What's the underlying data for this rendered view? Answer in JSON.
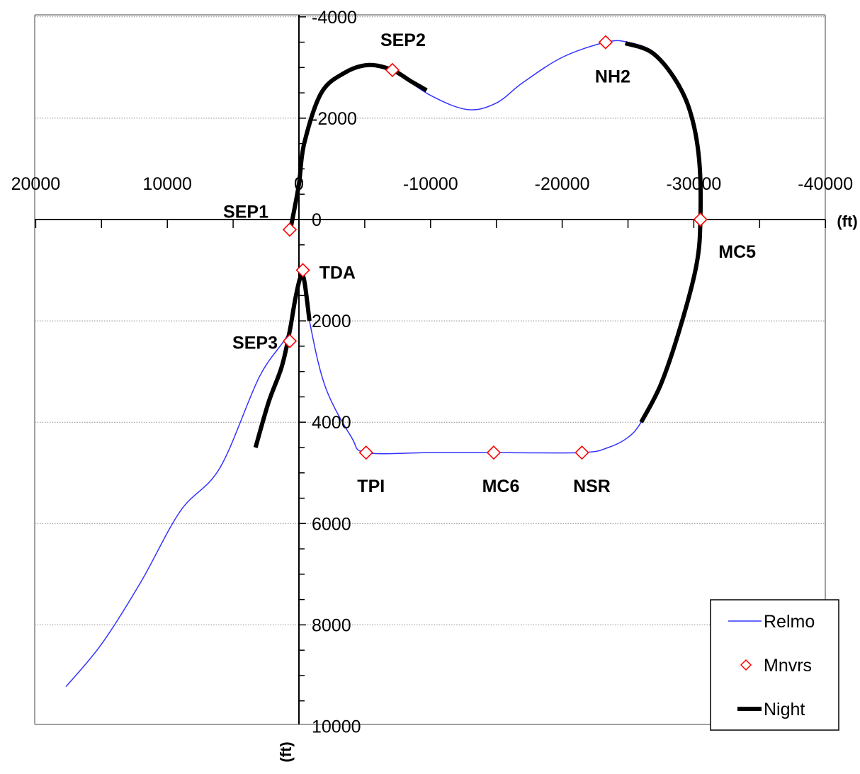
{
  "chart_data": {
    "type": "line",
    "x_unit_label": "(ft)",
    "y_unit_label": "(ft)",
    "xlim": [
      20000,
      -40000
    ],
    "ylim": [
      -4000,
      10000
    ],
    "x_axis_reversed": true,
    "y_axis_inverted": true,
    "x_ticks": [
      20000,
      10000,
      0,
      -10000,
      -20000,
      -30000,
      -40000
    ],
    "y_ticks": [
      -4000,
      -2000,
      0,
      2000,
      4000,
      6000,
      8000,
      10000
    ],
    "x_tick_labels": [
      "20000",
      "10000",
      "0",
      "-10000",
      "-20000",
      "-30000",
      "-40000"
    ],
    "y_tick_labels": [
      "-4000",
      "-2000",
      "0",
      "2000",
      "4000",
      "6000",
      "8000",
      "10000"
    ],
    "grid": "horizontal dotted at y ticks",
    "legend_position": "bottom-right",
    "legend": [
      "Relmo",
      "Mnvrs",
      "Night"
    ],
    "series": [
      {
        "name": "Relmo",
        "color": "#3333ff",
        "points": [
          [
            17700,
            9220
          ],
          [
            15000,
            8380
          ],
          [
            12000,
            7150
          ],
          [
            9000,
            5750
          ],
          [
            6000,
            4900
          ],
          [
            3000,
            3100
          ],
          [
            700,
            2180
          ],
          [
            0,
            1150
          ],
          [
            -400,
            1200
          ],
          [
            -800,
            2000
          ],
          [
            -2000,
            3300
          ],
          [
            -4000,
            4300
          ],
          [
            -5100,
            4600
          ],
          [
            -10000,
            4600
          ],
          [
            -14800,
            4600
          ],
          [
            -21500,
            4600
          ],
          [
            -23500,
            4500
          ],
          [
            -25000,
            4300
          ],
          [
            -26000,
            4000
          ],
          [
            -27500,
            3250
          ],
          [
            -29000,
            2100
          ],
          [
            -30200,
            900
          ],
          [
            -30500,
            0
          ],
          [
            -30400,
            -1200
          ],
          [
            -29700,
            -2150
          ],
          [
            -28500,
            -2800
          ],
          [
            -27000,
            -3300
          ],
          [
            -25000,
            -3500
          ],
          [
            -23300,
            -3500
          ],
          [
            -20000,
            -3200
          ],
          [
            -17000,
            -2700
          ],
          [
            -15000,
            -2300
          ],
          [
            -12800,
            -2170
          ],
          [
            -10000,
            -2450
          ],
          [
            -7000,
            -2950
          ],
          [
            -5300,
            -3050
          ],
          [
            -3500,
            -2900
          ],
          [
            -1700,
            -2500
          ],
          [
            -400,
            -1500
          ],
          [
            0,
            -700
          ],
          [
            500,
            0
          ],
          [
            660,
            200
          ]
        ]
      }
    ],
    "night_segments": [
      [
        [
          -9700,
          -2550
        ],
        [
          -8500,
          -2730
        ],
        [
          -7100,
          -2950
        ],
        [
          -5300,
          -3050
        ],
        [
          -3500,
          -2900
        ],
        [
          -1700,
          -2500
        ],
        [
          -400,
          -1500
        ],
        [
          0,
          -700
        ],
        [
          500,
          0
        ],
        [
          660,
          200
        ]
      ],
      [
        [
          -24800,
          -3480
        ],
        [
          -26800,
          -3300
        ],
        [
          -28500,
          -2800
        ],
        [
          -29700,
          -2150
        ],
        [
          -30400,
          -1200
        ],
        [
          -30500,
          0
        ],
        [
          -30200,
          900
        ],
        [
          -29000,
          2100
        ],
        [
          -27500,
          3250
        ],
        [
          -26000,
          4000
        ]
      ],
      [
        [
          3300,
          4500
        ],
        [
          2300,
          3600
        ],
        [
          1300,
          2900
        ],
        [
          700,
          2200
        ],
        [
          300,
          1600
        ],
        [
          -100,
          1150
        ],
        [
          -400,
          1200
        ],
        [
          -800,
          2000
        ]
      ]
    ],
    "maneuvers": [
      {
        "name": "SEP1",
        "x": 700,
        "y": 200
      },
      {
        "name": "SEP2",
        "x": -7100,
        "y": -2950
      },
      {
        "name": "NH2",
        "x": -23300,
        "y": -3500
      },
      {
        "name": "MC5",
        "x": -30500,
        "y": 0
      },
      {
        "name": "TDA",
        "x": -300,
        "y": 1000
      },
      {
        "name": "SEP3",
        "x": 700,
        "y": 2400
      },
      {
        "name": "TPI",
        "x": -5100,
        "y": 4600
      },
      {
        "name": "MC6",
        "x": -14800,
        "y": 4600
      },
      {
        "name": "NSR",
        "x": -21500,
        "y": 4600
      }
    ]
  }
}
